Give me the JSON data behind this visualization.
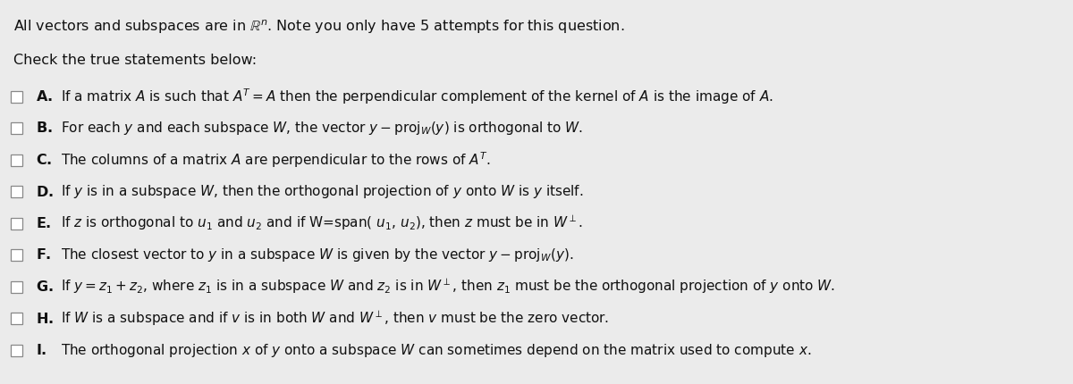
{
  "background_color": "#ebebeb",
  "fig_width": 12.0,
  "fig_height": 4.3,
  "dpi": 100,
  "items": [
    {
      "label": "A.",
      "text": "If a matrix $A$ is such that $A^T = A$ then the perpendicular complement of the kernel of $A$ is the image of $A$."
    },
    {
      "label": "B.",
      "text": "For each $y$ and each subspace $W$, the vector $y - \\mathrm{proj}_W(y)$ is orthogonal to $W$."
    },
    {
      "label": "C.",
      "text": "The columns of a matrix $A$ are perpendicular to the rows of $A^T$."
    },
    {
      "label": "D.",
      "text": "If $y$ is in a subspace $W$, then the orthogonal projection of $y$ onto $W$ is $y$ itself."
    },
    {
      "label": "E.",
      "text": "If $z$ is orthogonal to $u_1$ and $u_2$ and if W=span( $u_1$, $u_2$), then $z$ must be in $W^\\perp$."
    },
    {
      "label": "F.",
      "text": "The closest vector to $y$ in a subspace $W$ is given by the vector $y - \\mathrm{proj}_W(y)$."
    },
    {
      "label": "G.",
      "text": "If $y = z_1 + z_2$, where $z_1$ is in a subspace $W$ and $z_2$ is in $W^\\perp$, then $z_1$ must be the orthogonal projection of $y$ onto $W$."
    },
    {
      "label": "H.",
      "text": "If $W$ is a subspace and if $v$ is in both $W$ and $W^\\perp$, then $v$ must be the zero vector."
    },
    {
      "label": "I.",
      "text": "The orthogonal projection $x$ of $y$ onto a subspace $W$ can sometimes depend on the matrix used to compute $x$."
    }
  ],
  "text_color": "#111111",
  "font_size": 11.0,
  "header_font_size": 11.5
}
